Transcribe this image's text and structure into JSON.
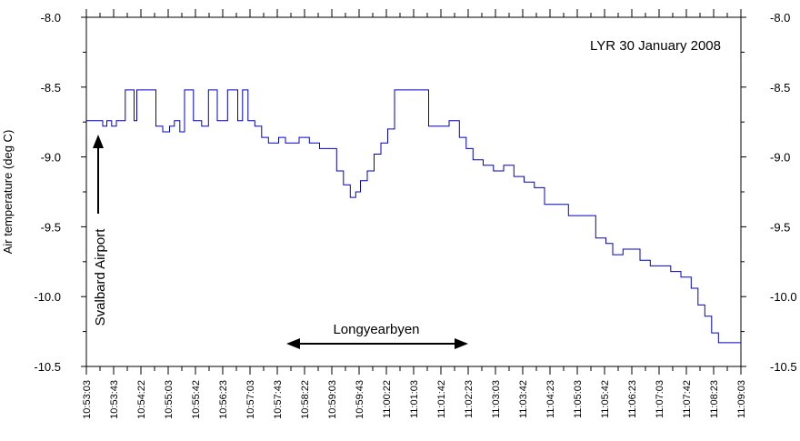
{
  "chart_data": {
    "type": "line",
    "title": "LYR 30 January 2008",
    "ylabel": "Air temperature (deg C)",
    "xlabel": "",
    "ylim": [
      -10.5,
      -8.0
    ],
    "y_ticks": [
      "-8.0",
      "-8.5",
      "-9.0",
      "-9.5",
      "-10.0",
      "-10.5"
    ],
    "x_tick_labels": [
      "10:53:03",
      "10:53:43",
      "10:54:22",
      "10:55:03",
      "10:55:42",
      "10:56:23",
      "10:57:03",
      "10:57:43",
      "10:58:22",
      "10:59:03",
      "10:59:43",
      "11:00:22",
      "11:01:03",
      "11:01:42",
      "11:02:23",
      "11:03:03",
      "11:03:42",
      "11:04:23",
      "11:05:03",
      "11:05:42",
      "11:06:23",
      "11:07:03",
      "11:07:42",
      "11:08:23",
      "11:09:03"
    ],
    "grid": false,
    "series_color": "#0000cc",
    "series": [
      {
        "x": [
          "10:53:03",
          "10:53:20",
          "10:53:27",
          "10:53:33",
          "10:53:40",
          "10:53:47",
          "10:54:00",
          "10:54:10",
          "10:54:13",
          "10:54:17",
          "10:54:35",
          "10:54:45",
          "10:54:55",
          "10:55:05",
          "10:55:12",
          "10:55:20",
          "10:55:27",
          "10:55:32",
          "10:55:40",
          "10:55:52",
          "10:56:02",
          "10:56:10",
          "10:56:15",
          "10:56:30",
          "10:56:45",
          "10:56:52",
          "10:57:00",
          "10:57:10",
          "10:57:20",
          "10:57:30",
          "10:57:45",
          "10:57:55",
          "10:58:15",
          "10:58:30",
          "10:58:45",
          "10:58:55",
          "10:59:10",
          "10:59:20",
          "10:59:30",
          "10:59:38",
          "10:59:45",
          "10:59:55",
          "11:00:05",
          "11:00:15",
          "11:00:25",
          "11:00:35",
          "11:00:45",
          "11:01:00",
          "11:01:10",
          "11:01:25",
          "11:01:45",
          "11:01:55",
          "11:02:10",
          "11:02:20",
          "11:02:30",
          "11:02:45",
          "11:03:00",
          "11:03:15",
          "11:03:30",
          "11:03:45",
          "11:04:00",
          "11:04:15",
          "11:04:30",
          "11:04:50",
          "11:05:10",
          "11:05:30",
          "11:05:45",
          "11:05:55",
          "11:06:10",
          "11:06:20",
          "11:06:35",
          "11:06:50",
          "11:07:05",
          "11:07:20",
          "11:07:35",
          "11:07:50",
          "11:08:00",
          "11:08:10",
          "11:08:20",
          "11:08:30",
          "11:08:40",
          "11:09:03"
        ],
        "values": [
          -8.74,
          -8.74,
          -8.78,
          -8.74,
          -8.78,
          -8.74,
          -8.52,
          -8.52,
          -8.74,
          -8.52,
          -8.52,
          -8.78,
          -8.82,
          -8.78,
          -8.74,
          -8.82,
          -8.52,
          -8.52,
          -8.74,
          -8.78,
          -8.52,
          -8.52,
          -8.74,
          -8.52,
          -8.74,
          -8.52,
          -8.74,
          -8.78,
          -8.86,
          -8.9,
          -8.86,
          -8.9,
          -8.86,
          -8.9,
          -8.94,
          -8.94,
          -9.1,
          -9.2,
          -9.29,
          -9.25,
          -9.17,
          -9.1,
          -8.98,
          -8.9,
          -8.8,
          -8.52,
          -8.52,
          -8.52,
          -8.52,
          -8.78,
          -8.78,
          -8.74,
          -8.86,
          -8.94,
          -9.02,
          -9.06,
          -9.1,
          -9.06,
          -9.14,
          -9.18,
          -9.22,
          -9.34,
          -9.34,
          -9.42,
          -9.42,
          -9.58,
          -9.62,
          -9.7,
          -9.66,
          -9.66,
          -9.74,
          -9.78,
          -9.78,
          -9.82,
          -9.86,
          -9.94,
          -10.06,
          -10.14,
          -10.26,
          -10.33,
          -10.33,
          -10.33
        ]
      }
    ],
    "annotations": [
      {
        "text": "Svalbard Airport",
        "arrow": "up",
        "at_x": "10:53:20"
      },
      {
        "text": "Longyearbyen",
        "arrow": "double-horizontal",
        "from_x": "10:58:00",
        "to_x": "11:02:23"
      }
    ]
  }
}
